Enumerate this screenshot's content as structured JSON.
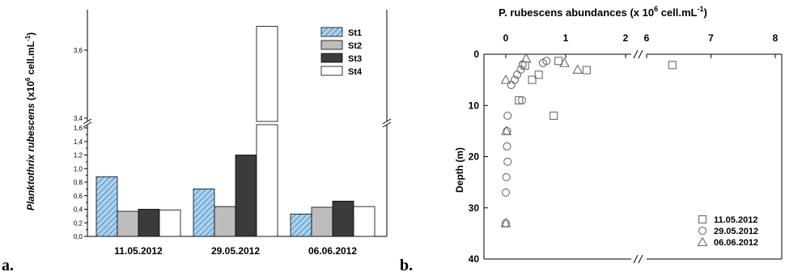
{
  "panels": {
    "a": "a.",
    "b": "b."
  },
  "chart_data": [
    {
      "type": "bar",
      "title": "",
      "ylabel_italic": "Planktothrix rubescens",
      "ylabel_pre": "(x10",
      "ylabel_sup": "6",
      "ylabel_mid": " cell.mL",
      "ylabel_sup2": "-1",
      "ylabel_post": ")",
      "categories": [
        "11.05.2012",
        "29.05.2012",
        "06.06.2012"
      ],
      "series": [
        {
          "name": "St1",
          "values": [
            0.88,
            0.7,
            0.33
          ]
        },
        {
          "name": "St2",
          "values": [
            0.37,
            0.44,
            0.43
          ]
        },
        {
          "name": "St3",
          "values": [
            0.4,
            1.2,
            0.52
          ]
        },
        {
          "name": "St4",
          "values": [
            0.39,
            3.67,
            0.44
          ]
        }
      ],
      "axis_break": {
        "lower_range": [
          0,
          1.6
        ],
        "upper_range": [
          3.4,
          3.7
        ]
      },
      "lower_ticks": [
        "0,0",
        "0,2",
        "0,4",
        "0,6",
        "0,8",
        "1,0",
        "1,2",
        "1,4",
        "1,6"
      ],
      "upper_ticks": [
        "3,4",
        "3,6"
      ],
      "legend_position": "top-right",
      "colors": {
        "St1": "#a9d2ee",
        "St2": "#bdbdbd",
        "St3": "#3b3b3b",
        "St4": "#ffffff"
      }
    },
    {
      "type": "scatter",
      "title_pre": "P. rubescens abundances (x 10",
      "title_sup": "6",
      "title_mid": " cell.mL",
      "title_sup2": "-1",
      "title_post": ")",
      "ylabel": "Depth (m)",
      "x_ticks_left": [
        "0",
        "1",
        "2"
      ],
      "x_ticks_right": [
        "6",
        "7",
        "8"
      ],
      "y_ticks": [
        "0",
        "10",
        "20",
        "30",
        "40"
      ],
      "x_break": [
        2.3,
        6
      ],
      "ylim": [
        0,
        40
      ],
      "legend_position": "bottom-right",
      "series": [
        {
          "name": "11.05.2012",
          "marker": "square",
          "points": [
            [
              0.88,
              1.3
            ],
            [
              0.32,
              2.2
            ],
            [
              0.55,
              4.0
            ],
            [
              0.44,
              5.0
            ],
            [
              0.22,
              9.0
            ],
            [
              0.8,
              12.0
            ],
            [
              1.35,
              3.1
            ],
            [
              6.4,
              2.1
            ]
          ]
        },
        {
          "name": "29.05.2012",
          "marker": "circle",
          "points": [
            [
              0.28,
              2.0
            ],
            [
              0.68,
              1.3
            ],
            [
              0.62,
              1.7
            ],
            [
              0.25,
              3.0
            ],
            [
              0.19,
              4.0
            ],
            [
              0.15,
              5.0
            ],
            [
              0.09,
              6.0
            ],
            [
              0.27,
              9.0
            ],
            [
              0.03,
              12.0
            ],
            [
              0.02,
              15.0
            ],
            [
              0.02,
              18.0
            ],
            [
              0.03,
              21.0
            ],
            [
              0.01,
              24.0
            ],
            [
              0.0,
              27.0
            ],
            [
              0.0,
              33.0
            ]
          ]
        },
        {
          "name": "06.06.2012",
          "marker": "triangle",
          "points": [
            [
              0.34,
              0.8
            ],
            [
              0.98,
              1.7
            ],
            [
              1.2,
              3.0
            ],
            [
              0.0,
              5.0
            ],
            [
              0.01,
              15.0
            ],
            [
              0.0,
              33.0
            ]
          ]
        }
      ]
    }
  ]
}
